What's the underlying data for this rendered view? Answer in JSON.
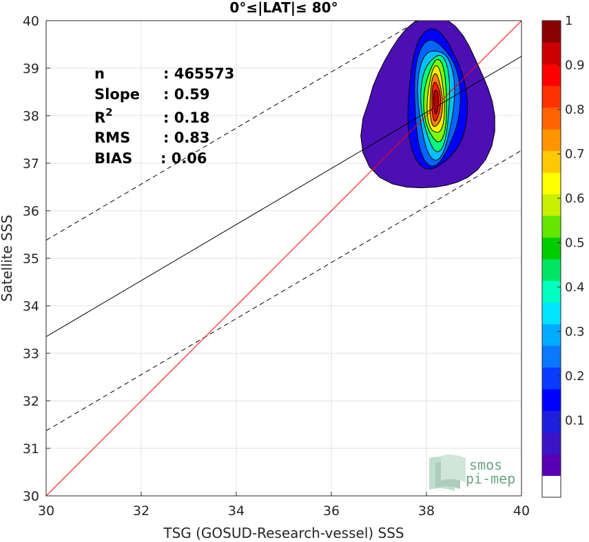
{
  "chart_data": {
    "type": "contour-scatter",
    "title": "0°≤|LAT|≤ 80°",
    "xlabel": "TSG (GOSUD-Research-vessel) SSS",
    "ylabel": "Satellite SSS",
    "xlim": [
      30,
      40
    ],
    "ylim": [
      30,
      40
    ],
    "xticks": [
      30,
      32,
      34,
      36,
      38,
      40
    ],
    "yticks": [
      30,
      31,
      32,
      33,
      34,
      35,
      36,
      37,
      38,
      39,
      40
    ],
    "grid": true,
    "stats": [
      {
        "name": "n",
        "value": ": 465573"
      },
      {
        "name": "Slope",
        "value": ": 0.59"
      },
      {
        "name": "R",
        "sup": "2",
        "value": ": 0.18"
      },
      {
        "name": "RMS",
        "value": ": 0.83"
      },
      {
        "name": "BIAS",
        "value": ": 0.06"
      }
    ],
    "one_to_one_line": {
      "color": "#ff0000",
      "points": [
        [
          30,
          30
        ],
        [
          40,
          40
        ]
      ]
    },
    "fit_line": {
      "color": "#000000",
      "points": [
        [
          30,
          33.35
        ],
        [
          40,
          39.25
        ]
      ]
    },
    "fit_bounds": [
      {
        "style": "dashed",
        "points": [
          [
            30,
            35.38
          ],
          [
            40,
            41.28
          ]
        ]
      },
      {
        "style": "dashed",
        "points": [
          [
            30,
            31.37
          ],
          [
            40,
            37.27
          ]
        ]
      }
    ],
    "density_center": [
      38.2,
      38.3
    ],
    "density_levels": [
      {
        "level": 0.05,
        "color": "#4b0fb3",
        "rx": 1.3,
        "ry": 1.8
      },
      {
        "level": 0.15,
        "color": "#0000ff",
        "rx": 0.62,
        "ry": 1.45
      },
      {
        "level": 0.25,
        "color": "#0066ff",
        "rx": 0.48,
        "ry": 1.3
      },
      {
        "level": 0.35,
        "color": "#00c0ff",
        "rx": 0.38,
        "ry": 1.15
      },
      {
        "level": 0.45,
        "color": "#00ff80",
        "rx": 0.3,
        "ry": 1.0
      },
      {
        "level": 0.55,
        "color": "#80ff00",
        "rx": 0.24,
        "ry": 0.85
      },
      {
        "level": 0.65,
        "color": "#ffee00",
        "rx": 0.18,
        "ry": 0.7
      },
      {
        "level": 0.75,
        "color": "#ff8000",
        "rx": 0.13,
        "ry": 0.55
      },
      {
        "level": 0.85,
        "color": "#ff2000",
        "rx": 0.09,
        "ry": 0.4
      },
      {
        "level": 0.95,
        "color": "#b00000",
        "rx": 0.05,
        "ry": 0.25
      }
    ],
    "colorbar": {
      "range": [
        0,
        1
      ],
      "colors": [
        "#ffffff",
        "#5a00b4",
        "#3c14c8",
        "#1e1edc",
        "#0000ff",
        "#0a3cff",
        "#0a78ff",
        "#00aaff",
        "#00e6ff",
        "#00ffc0",
        "#00e664",
        "#00cc00",
        "#64e600",
        "#c8f000",
        "#ffff00",
        "#ffc800",
        "#ff9600",
        "#ff6400",
        "#ff3200",
        "#ff0000",
        "#cc0000",
        "#8b0000"
      ],
      "ticks": [
        0.1,
        0.2,
        0.3,
        0.4,
        0.5,
        0.6,
        0.7,
        0.8,
        0.9,
        1
      ],
      "tick_labels": [
        "0.1",
        "0.2",
        "0.3",
        "0.4",
        "0.5",
        "0.6",
        "0.7",
        "0.8",
        "0.9",
        "1"
      ]
    },
    "logo": {
      "line1": "smos",
      "line2": "pi-mep"
    }
  }
}
